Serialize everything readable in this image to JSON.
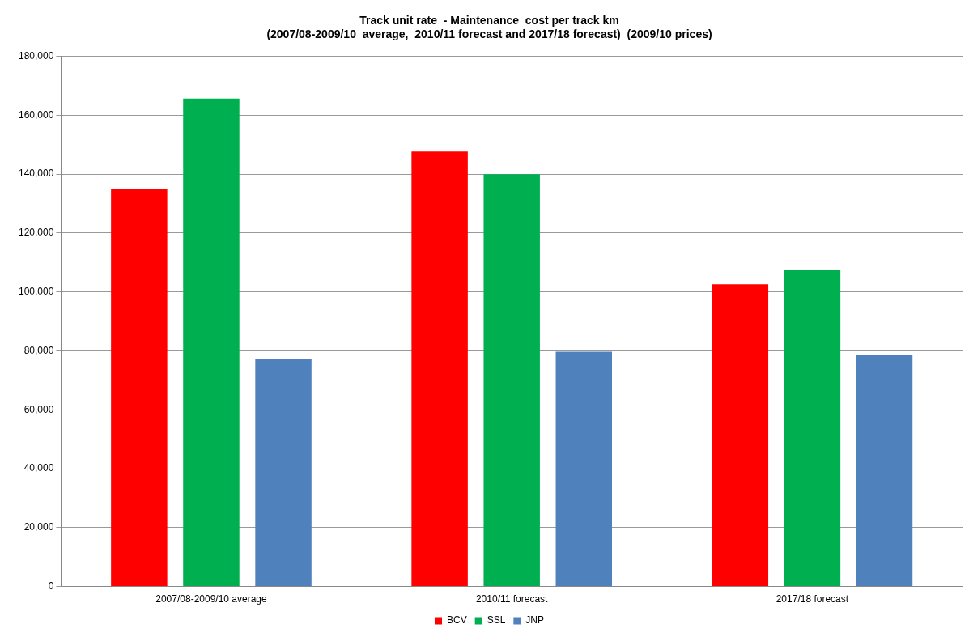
{
  "chart_data": {
    "type": "bar",
    "title": [
      "Track unit rate  - Maintenance  cost per track km",
      "(2007/08-2009/10  average,  2010/11 forecast and 2017/18 forecast)  (2009/10 prices)"
    ],
    "categories": [
      "2007/08-2009/10 average",
      "2010/11 forecast",
      "2017/18 forecast"
    ],
    "series": [
      {
        "name": "BCV",
        "color": "#ff0000",
        "values": [
          135000,
          147700,
          102600
        ]
      },
      {
        "name": "SSL",
        "color": "#00b050",
        "values": [
          165700,
          140000,
          107400
        ]
      },
      {
        "name": "JNP",
        "color": "#4f81bd",
        "values": [
          77400,
          79700,
          78600
        ]
      }
    ],
    "ylim": [
      0,
      180000
    ],
    "yticks": [
      0,
      {
        "value": 20000,
        "label": "20,000"
      },
      {
        "value": 40000,
        "label": "40,000"
      },
      {
        "value": 60000,
        "label": "60,000"
      },
      {
        "value": 80000,
        "label": "80,000"
      },
      {
        "value": 100000,
        "label": "100,000"
      },
      {
        "value": 120000,
        "label": "120,000"
      },
      {
        "value": 140000,
        "label": "140,000"
      },
      {
        "value": 160000,
        "label": "160,000"
      },
      {
        "value": 180000,
        "label": "180,000"
      }
    ],
    "grid": "y",
    "legend": "bottom"
  }
}
